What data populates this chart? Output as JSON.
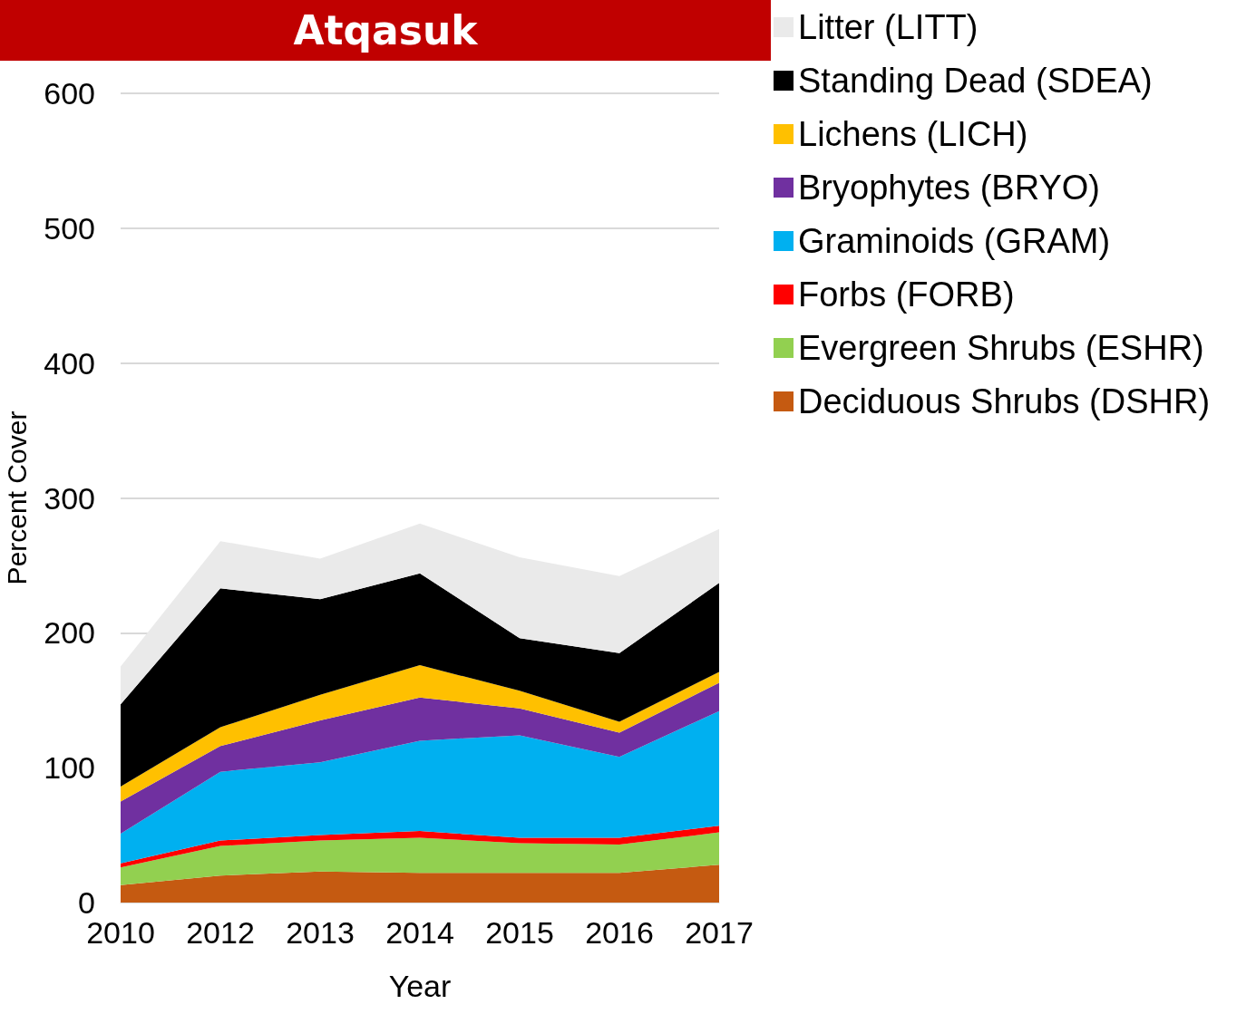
{
  "chart_data": {
    "type": "area",
    "title": "Atqasuk",
    "xlabel": "Year",
    "ylabel": "Percent Cover",
    "categories": [
      "2010",
      "2012",
      "2013",
      "2014",
      "2015",
      "2016",
      "2017"
    ],
    "stacked": true,
    "ylim": [
      0,
      600
    ],
    "yticks": [
      0,
      100,
      200,
      300,
      400,
      500,
      600
    ],
    "grid": "y",
    "legend": "right",
    "series": [
      {
        "name": "Deciduous Shrubs (DSHR)",
        "color": "#c55a11",
        "values": [
          13,
          20,
          23,
          22,
          22,
          22,
          28
        ]
      },
      {
        "name": "Evergreen Shrubs (ESHR)",
        "color": "#92d050",
        "values": [
          13,
          22,
          23,
          26,
          22,
          21,
          24
        ]
      },
      {
        "name": "Forbs (FORB)",
        "color": "#ff0000",
        "values": [
          3,
          4,
          4,
          5,
          4,
          5,
          5
        ]
      },
      {
        "name": "Graminoids (GRAM)",
        "color": "#00b0f0",
        "values": [
          22,
          51,
          54,
          67,
          76,
          60,
          85
        ]
      },
      {
        "name": "Bryophytes (BRYO)",
        "color": "#7030a0",
        "values": [
          24,
          19,
          31,
          32,
          20,
          18,
          21
        ]
      },
      {
        "name": "Lichens (LICH)",
        "color": "#ffc000",
        "values": [
          11,
          14,
          19,
          24,
          13,
          8,
          8
        ]
      },
      {
        "name": "Standing Dead (SDEA)",
        "color": "#000000",
        "values": [
          61,
          103,
          71,
          68,
          39,
          51,
          66
        ]
      },
      {
        "name": "Litter (LITT)",
        "color": "#eaeaea",
        "values": [
          28,
          35,
          30,
          37,
          60,
          57,
          40
        ]
      }
    ]
  }
}
